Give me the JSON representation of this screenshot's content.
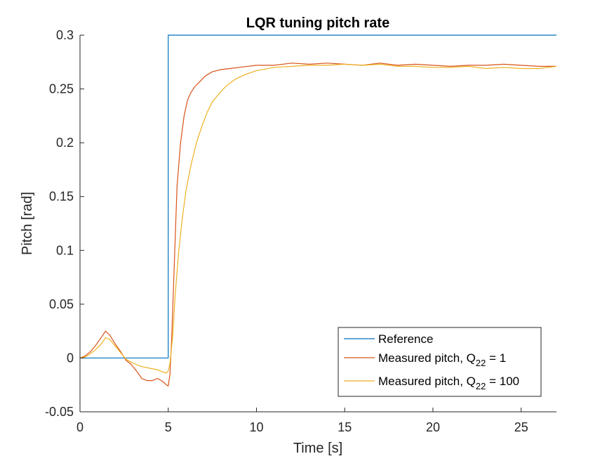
{
  "chart_data": {
    "type": "line",
    "title": "LQR tuning pitch rate",
    "xlabel": "Time [s]",
    "ylabel": "Pitch [rad]",
    "xlim": [
      0,
      27
    ],
    "ylim": [
      -0.05,
      0.3
    ],
    "xticks": [
      0,
      5,
      10,
      15,
      20,
      25
    ],
    "yticks": [
      -0.05,
      0,
      0.05,
      0.1,
      0.15,
      0.2,
      0.25,
      0.3
    ],
    "xtick_labels": [
      "0",
      "5",
      "10",
      "15",
      "20",
      "25"
    ],
    "ytick_labels": [
      "-0.05",
      "0",
      "0.05",
      "0.1",
      "0.15",
      "0.2",
      "0.25",
      "0.3"
    ],
    "grid": false,
    "legend_position": "bottom-right",
    "series": [
      {
        "name": "Reference",
        "color": "#0072BD",
        "x": [
          0,
          5,
          5,
          27
        ],
        "y": [
          0,
          0,
          0.3,
          0.3
        ]
      },
      {
        "name": "Measured pitch, Q22 = 1",
        "legend_main": "Measured pitch, Q",
        "legend_sub": "22",
        "legend_tail": " = 1",
        "color": "#D95319",
        "x": [
          0,
          0.3,
          0.6,
          0.9,
          1.2,
          1.45,
          1.7,
          2.0,
          2.3,
          2.6,
          2.9,
          3.2,
          3.5,
          3.8,
          4.1,
          4.4,
          4.7,
          4.9,
          5.0,
          5.1,
          5.2,
          5.35,
          5.5,
          5.7,
          5.9,
          6.1,
          6.3,
          6.5,
          6.8,
          7.1,
          7.5,
          8.0,
          8.5,
          9.0,
          10.0,
          11.0,
          12.0,
          13.0,
          14.0,
          15.0,
          16.0,
          17.0,
          18.0,
          19.0,
          20.0,
          21.0,
          22.0,
          23.0,
          24.0,
          25.0,
          26.0,
          27.0
        ],
        "y": [
          0.0,
          0.002,
          0.006,
          0.012,
          0.019,
          0.025,
          0.021,
          0.013,
          0.006,
          -0.002,
          -0.006,
          -0.012,
          -0.019,
          -0.021,
          -0.021,
          -0.019,
          -0.022,
          -0.025,
          -0.026,
          -0.015,
          0.02,
          0.09,
          0.16,
          0.2,
          0.225,
          0.24,
          0.247,
          0.252,
          0.257,
          0.262,
          0.266,
          0.268,
          0.269,
          0.27,
          0.272,
          0.272,
          0.274,
          0.273,
          0.274,
          0.273,
          0.272,
          0.274,
          0.272,
          0.273,
          0.272,
          0.271,
          0.272,
          0.272,
          0.273,
          0.272,
          0.271,
          0.271
        ]
      },
      {
        "name": "Measured pitch, Q22 = 100",
        "legend_main": "Measured pitch, Q",
        "legend_sub": "22",
        "legend_tail": " = 100",
        "color": "#EDB120",
        "x": [
          0,
          0.3,
          0.6,
          0.9,
          1.2,
          1.45,
          1.7,
          2.0,
          2.3,
          2.6,
          2.9,
          3.2,
          3.5,
          3.8,
          4.1,
          4.4,
          4.7,
          4.9,
          5.0,
          5.1,
          5.25,
          5.4,
          5.6,
          5.8,
          6.0,
          6.3,
          6.6,
          6.9,
          7.2,
          7.5,
          7.9,
          8.3,
          8.8,
          9.3,
          10.0,
          11.0,
          12.0,
          13.0,
          14.0,
          15.0,
          16.0,
          17.0,
          18.0,
          19.0,
          20.0,
          21.0,
          22.0,
          23.0,
          24.0,
          25.0,
          26.0,
          27.0
        ],
        "y": [
          0.0,
          0.001,
          0.004,
          0.008,
          0.013,
          0.019,
          0.017,
          0.011,
          0.005,
          -0.001,
          -0.004,
          -0.006,
          -0.008,
          -0.009,
          -0.01,
          -0.011,
          -0.013,
          -0.014,
          -0.012,
          -0.005,
          0.02,
          0.06,
          0.1,
          0.13,
          0.155,
          0.18,
          0.2,
          0.215,
          0.228,
          0.238,
          0.246,
          0.253,
          0.259,
          0.263,
          0.267,
          0.27,
          0.271,
          0.272,
          0.272,
          0.273,
          0.272,
          0.273,
          0.271,
          0.271,
          0.27,
          0.27,
          0.271,
          0.269,
          0.27,
          0.269,
          0.269,
          0.271
        ]
      }
    ]
  }
}
